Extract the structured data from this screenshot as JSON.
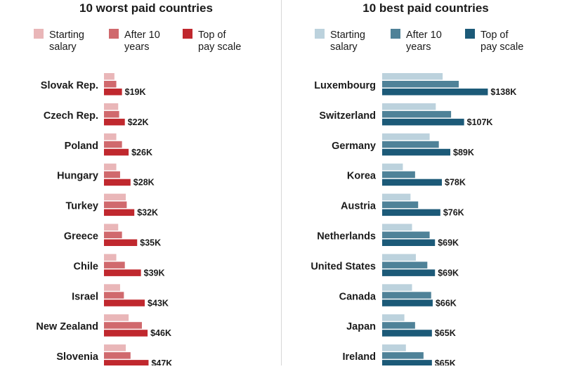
{
  "chart_data": [
    {
      "type": "bar",
      "orientation": "horizontal",
      "title": "10 worst paid countries",
      "legend_position": "top",
      "categories": [
        "Slovak Rep.",
        "Czech Rep.",
        "Poland",
        "Hungary",
        "Turkey",
        "Greece",
        "Chile",
        "Israel",
        "New Zealand",
        "Slovenia"
      ],
      "series": [
        {
          "name": "Starting salary",
          "color": "#e9b6b8",
          "values": [
            11,
            15,
            13,
            13,
            23,
            15,
            13,
            17,
            26,
            23
          ]
        },
        {
          "name": "After 10 years",
          "color": "#d0696d",
          "values": [
            13,
            16,
            19,
            17,
            24,
            19,
            22,
            21,
            40,
            28
          ]
        },
        {
          "name": "Top of pay scale",
          "color": "#c0282e",
          "values": [
            19,
            22,
            26,
            28,
            32,
            35,
            39,
            43,
            46,
            47
          ]
        }
      ],
      "data_labels": [
        "$19K",
        "$22K",
        "$26K",
        "$28K",
        "$32K",
        "$35K",
        "$39K",
        "$43K",
        "$46K",
        "$47K"
      ],
      "value_unit": "thousand USD"
    },
    {
      "type": "bar",
      "orientation": "horizontal",
      "title": "10 best paid countries",
      "legend_position": "top",
      "categories": [
        "Luxembourg",
        "Switzerland",
        "Germany",
        "Korea",
        "Austria",
        "Netherlands",
        "United States",
        "Canada",
        "Japan",
        "Ireland"
      ],
      "series": [
        {
          "name": "Starting salary",
          "color": "#bcd2dd",
          "values": [
            79,
            70,
            62,
            27,
            37,
            39,
            44,
            39,
            29,
            31
          ]
        },
        {
          "name": "After 10 years",
          "color": "#4f8298",
          "values": [
            100,
            90,
            74,
            43,
            47,
            62,
            59,
            64,
            43,
            54
          ]
        },
        {
          "name": "Top of pay scale",
          "color": "#1c5a78",
          "values": [
            138,
            107,
            89,
            78,
            76,
            69,
            69,
            66,
            65,
            65
          ]
        }
      ],
      "data_labels": [
        "$138K",
        "$107K",
        "$89K",
        "$78K",
        "$76K",
        "$69K",
        "$69K",
        "$66K",
        "$65K",
        "$65K"
      ],
      "value_unit": "thousand USD"
    }
  ]
}
